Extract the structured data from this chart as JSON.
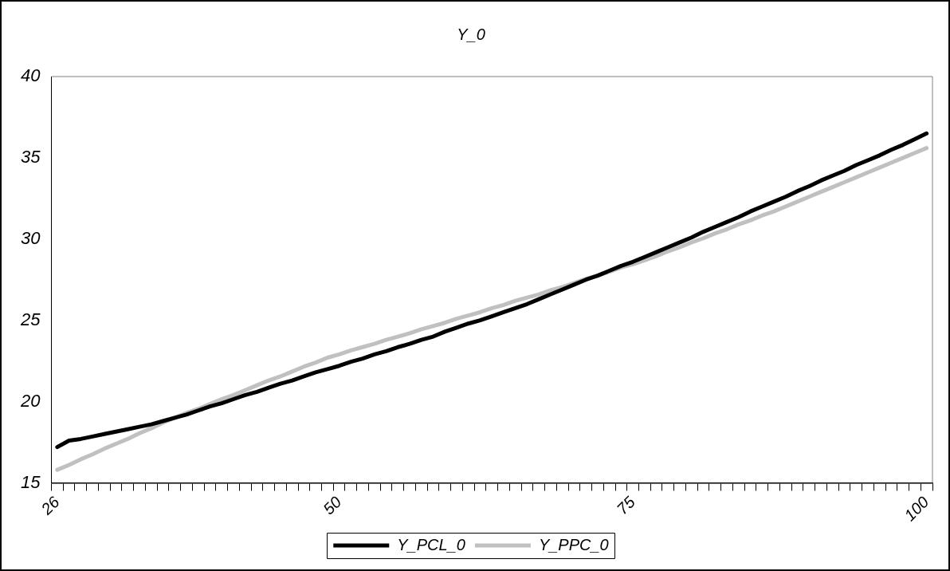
{
  "chart_data": {
    "type": "line",
    "title": "Y_0",
    "categories": [
      "26",
      null,
      null,
      null,
      null,
      null,
      null,
      null,
      null,
      null,
      null,
      null,
      null,
      null,
      null,
      null,
      null,
      null,
      null,
      null,
      null,
      null,
      null,
      null,
      "50",
      null,
      null,
      null,
      null,
      null,
      null,
      null,
      null,
      null,
      null,
      null,
      null,
      null,
      null,
      null,
      null,
      null,
      null,
      null,
      null,
      null,
      null,
      null,
      null,
      "75",
      null,
      null,
      null,
      null,
      null,
      null,
      null,
      null,
      null,
      null,
      null,
      null,
      null,
      null,
      null,
      null,
      null,
      null,
      null,
      null,
      null,
      null,
      null,
      null,
      "100"
    ],
    "series": [
      {
        "name": "Y_PCL_0",
        "color": "#000000",
        "values": [
          17.2,
          17.6,
          17.7,
          17.85,
          18.0,
          18.15,
          18.3,
          18.45,
          18.6,
          18.8,
          19.0,
          19.2,
          19.45,
          19.7,
          19.9,
          20.15,
          20.4,
          20.6,
          20.85,
          21.1,
          21.3,
          21.55,
          21.8,
          22.0,
          22.2,
          22.45,
          22.65,
          22.9,
          23.1,
          23.35,
          23.55,
          23.8,
          24.0,
          24.3,
          24.55,
          24.8,
          25.0,
          25.25,
          25.5,
          25.75,
          26.0,
          26.3,
          26.6,
          26.9,
          27.2,
          27.5,
          27.75,
          28.05,
          28.35,
          28.6,
          28.9,
          29.2,
          29.5,
          29.8,
          30.1,
          30.45,
          30.75,
          31.05,
          31.35,
          31.7,
          32.0,
          32.3,
          32.6,
          32.95,
          33.25,
          33.6,
          33.9,
          34.2,
          34.55,
          34.85,
          35.15,
          35.5,
          35.8,
          36.15,
          36.5
        ]
      },
      {
        "name": "Y_PPC_0",
        "color": "#c0c0c0",
        "values": [
          15.8,
          16.1,
          16.45,
          16.75,
          17.1,
          17.4,
          17.7,
          18.05,
          18.35,
          18.7,
          19.0,
          19.3,
          19.55,
          19.85,
          20.15,
          20.4,
          20.7,
          21.0,
          21.3,
          21.55,
          21.85,
          22.15,
          22.4,
          22.7,
          22.9,
          23.15,
          23.35,
          23.55,
          23.8,
          24.0,
          24.2,
          24.45,
          24.65,
          24.85,
          25.1,
          25.3,
          25.5,
          25.75,
          25.95,
          26.2,
          26.4,
          26.6,
          26.85,
          27.05,
          27.3,
          27.55,
          27.75,
          28.0,
          28.25,
          28.45,
          28.7,
          28.95,
          29.25,
          29.5,
          29.8,
          30.05,
          30.35,
          30.6,
          30.9,
          31.15,
          31.45,
          31.7,
          32.0,
          32.3,
          32.6,
          32.9,
          33.2,
          33.5,
          33.8,
          34.1,
          34.4,
          34.7,
          35.0,
          35.3,
          35.6
        ]
      }
    ],
    "ylim": [
      15,
      40
    ],
    "yticks": [
      15,
      20,
      25,
      30,
      35,
      40
    ],
    "grid": false,
    "legend": "bottom",
    "marker": "none",
    "line_style": "solid"
  }
}
